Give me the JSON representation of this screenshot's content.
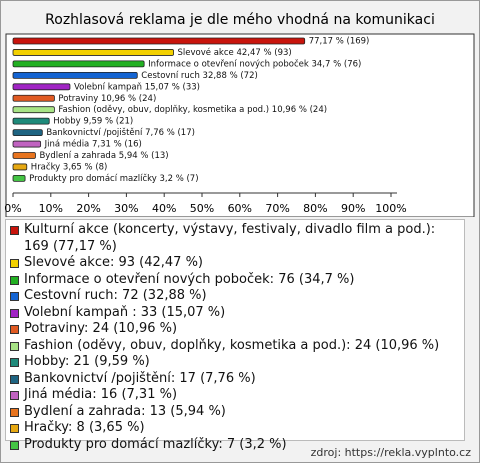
{
  "chart_data": {
    "type": "bar",
    "orientation": "horizontal",
    "title": "Rozhlasová reklama je dle mého vhodná na komunikaci",
    "categories": [
      "Kulturní akce (koncerty, výstavy, festivaly, divadlo film a pod.)",
      "Slevové akce",
      "Informace o otevření nových poboček",
      "Cestovní ruch",
      "Volební kampaň",
      "Potraviny",
      "Fashion (oděvy, obuv, doplňky, kosmetika a pod.)",
      "Hobby",
      "Bankovnictví /pojištění",
      "Jiná média",
      "Bydlení a zahrada",
      "Hračky",
      "Produkty pro domácí mazlíčky"
    ],
    "values": [
      77.17,
      42.47,
      34.7,
      32.88,
      15.07,
      10.96,
      10.96,
      9.59,
      7.76,
      7.31,
      5.94,
      3.65,
      3.2
    ],
    "value_labels": [
      "77,17 % (169)",
      "Slevové akce 42,47 % (93)",
      "Informace o otevření nových poboček 34,7 % (76)",
      "Cestovní ruch 32,88 % (72)",
      "Volební kampaň  15,07 % (33)",
      "Potraviny 10,96 % (24)",
      "Fashion (oděvy, obuv, doplňky, kosmetika a pod.) 10,96 % (24)",
      "Hobby 9,59 % (21)",
      "Bankovnictví /pojištění 7,76 % (17)",
      "Jiná média 7,31 % (16)",
      "Bydlení a zahrada 5,94 % (13)",
      "Hračky 3,65 % (8)",
      "Produkty pro domácí mazlíčky 3,2 % (7)"
    ],
    "colors": [
      "#c8140c",
      "#f2d000",
      "#22b022",
      "#1464d2",
      "#a024c4",
      "#e05a22",
      "#a8e486",
      "#1e8a7a",
      "#1e6482",
      "#c062c0",
      "#e8741e",
      "#e6a812",
      "#44c444"
    ],
    "legend": [
      "Kulturní akce (koncerty, výstavy, festivaly, divadlo film a pod.): 169 (77,17 %)",
      "Slevové akce: 93 (42,47 %)",
      "Informace o otevření nových poboček: 76 (34,7 %)",
      "Cestovní ruch: 72 (32,88 %)",
      "Volební kampaň : 33 (15,07 %)",
      "Potraviny: 24 (10,96 %)",
      "Fashion (oděvy, obuv, doplňky, kosmetika a pod.): 24 (10,96 %)",
      "Hobby: 21 (9,59 %)",
      "Bankovnictví /pojištění: 17 (7,76 %)",
      "Jiná média: 16 (7,31 %)",
      "Bydlení a zahrada: 13 (5,94 %)",
      "Hračky: 8 (3,65 %)",
      "Produkty pro domácí mazlíčky: 7 (3,2 %)"
    ],
    "xlim": [
      0,
      100
    ],
    "xticks": [
      {
        "value": 0,
        "label": "0%"
      },
      {
        "value": 10,
        "label": "10%"
      },
      {
        "value": 20,
        "label": "20%"
      },
      {
        "value": 30,
        "label": "30%"
      },
      {
        "value": 40,
        "label": "40%"
      },
      {
        "value": 50,
        "label": "50%"
      },
      {
        "value": 60,
        "label": "60%"
      },
      {
        "value": 70,
        "label": "70%"
      },
      {
        "value": 80,
        "label": "80%"
      },
      {
        "value": 90,
        "label": "90%"
      },
      {
        "value": 100,
        "label": "100%"
      }
    ],
    "source": "zdroj: https://rekla.vyplnto.cz"
  }
}
